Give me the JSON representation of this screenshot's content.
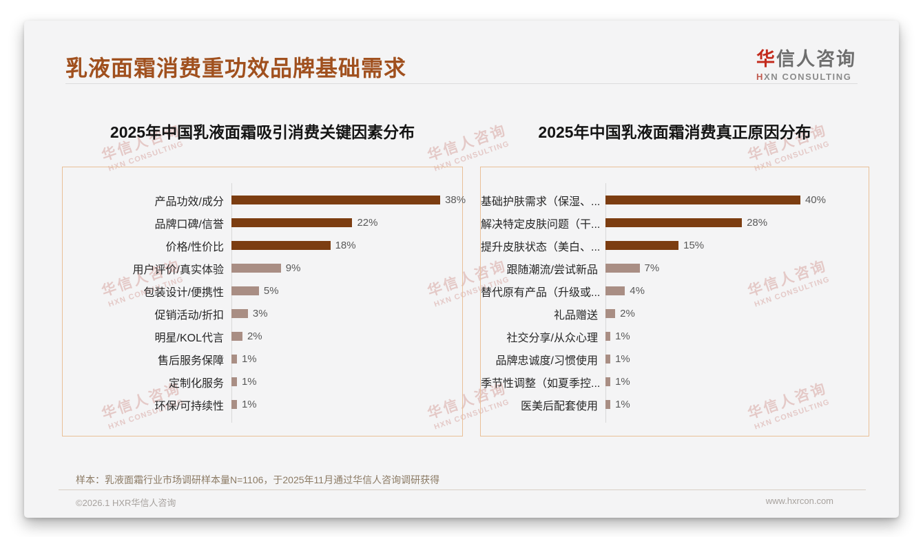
{
  "page": {
    "title": "乳液面霜消费重功效品牌基础需求",
    "logo": {
      "cn_accent": "华",
      "cn_rest": "信人咨询",
      "en_accent": "H",
      "en_rest": "XN CONSULTING"
    },
    "watermark": {
      "line1": "华信人咨询",
      "line2": "HXN CONSULTING"
    },
    "note": "样本：乳液面霜行业市场调研样本量N=1106，于2025年11月通过华信人咨询调研获得",
    "footer_left": "©2026.1 HXR华信人咨询",
    "footer_right": "www.hxrcon.com"
  },
  "colors": {
    "title": "#A0501E",
    "bar_primary": "#7C3D11",
    "bar_secondary": "#A98E84",
    "chart_border": "#E9BF97",
    "value_label": "#595959",
    "logo_red": "#C32A1C"
  },
  "chart_data": [
    {
      "type": "bar",
      "orientation": "horizontal",
      "title": "2025年中国乳液面霜吸引消费关键因素分布",
      "categories": [
        "产品功效/成分",
        "品牌口碑/信誉",
        "价格/性价比",
        "用户评价/真实体验",
        "包装设计/便携性",
        "促销活动/折扣",
        "明星/KOL代言",
        "售后服务保障",
        "定制化服务",
        "环保/可持续性"
      ],
      "values": [
        38,
        22,
        18,
        9,
        5,
        3,
        2,
        1,
        1,
        1
      ],
      "labels": [
        "38%",
        "22%",
        "18%",
        "9%",
        "5%",
        "3%",
        "2%",
        "1%",
        "1%",
        "1%"
      ],
      "xlim": [
        0,
        42
      ],
      "emphasized_bars": 3,
      "grid": false,
      "legend": false
    },
    {
      "type": "bar",
      "orientation": "horizontal",
      "title": "2025年中国乳液面霜消费真正原因分布",
      "categories": [
        "基础护肤需求（保湿、...",
        "解决特定皮肤问题（干...",
        "提升皮肤状态（美白、...",
        "跟随潮流/尝试新品",
        "替代原有产品（升级或...",
        "礼品赠送",
        "社交分享/从众心理",
        "品牌忠诚度/习惯使用",
        "季节性调整（如夏季控...",
        "医美后配套使用"
      ],
      "values": [
        40,
        28,
        15,
        7,
        4,
        2,
        1,
        1,
        1,
        1
      ],
      "labels": [
        "40%",
        "28%",
        "15%",
        "7%",
        "4%",
        "2%",
        "1%",
        "1%",
        "1%",
        "1%"
      ],
      "xlim": [
        0,
        54
      ],
      "emphasized_bars": 3,
      "grid": false,
      "legend": false
    }
  ]
}
